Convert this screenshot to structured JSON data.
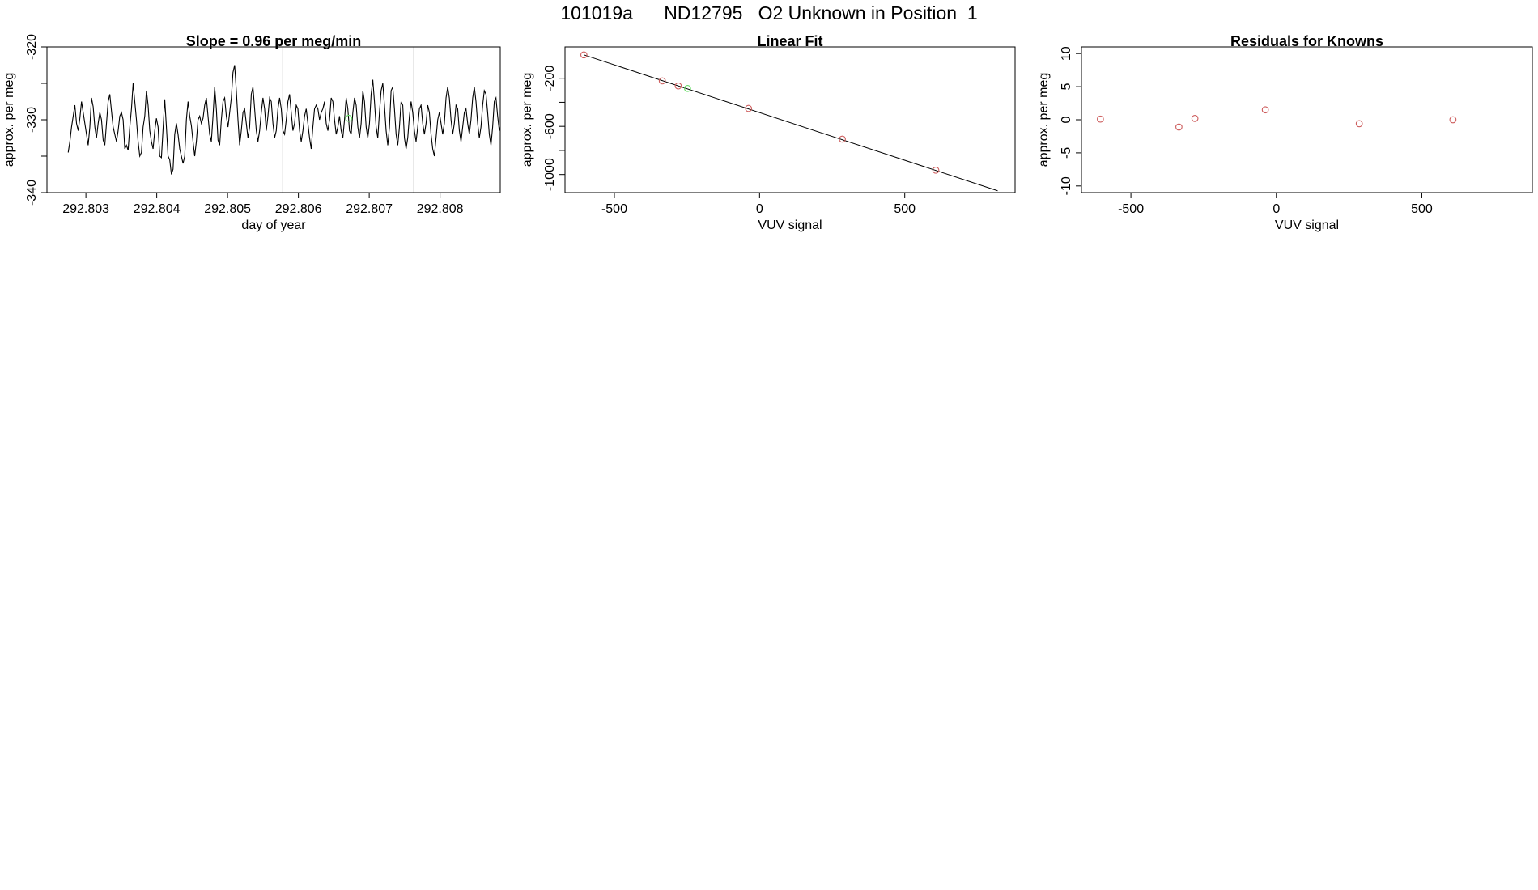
{
  "figure": {
    "title": "101019a      ND12795   O2 Unknown in Position  1"
  },
  "colors": {
    "line": "#000000",
    "known_point": "#cd5c5c",
    "unknown_point": "#66dd66",
    "vline": "#bebebe"
  },
  "chart_data": [
    {
      "type": "line",
      "title": "Slope =  0.96  per meg/min",
      "xlabel": "day of year",
      "ylabel": "approx. per meg",
      "xlim": [
        292.80245,
        292.80885
      ],
      "ylim": [
        -340,
        -320
      ],
      "xticks": [
        292.803,
        292.804,
        292.805,
        292.806,
        292.807,
        292.808
      ],
      "xtick_labels": [
        "292.803",
        "292.804",
        "292.805",
        "292.806",
        "292.807",
        "292.808"
      ],
      "yticks": [
        -340,
        -335,
        -330,
        -325,
        -320
      ],
      "ytick_labels": [
        "-340",
        "",
        "-330",
        "",
        "-320"
      ],
      "grid": false,
      "vlines": [
        292.80578,
        292.80763
      ],
      "x_start": 292.80275,
      "x_step": 2.35e-05,
      "series": [
        {
          "values": [
            -334.5,
            -333.0,
            -331.0,
            -329.5,
            -328.0,
            -330.5,
            -331.5,
            -329.8,
            -327.5,
            -329.0,
            -330.5,
            -332.0,
            -333.5,
            -331.0,
            -327.0,
            -328.2,
            -331.0,
            -332.5,
            -330.5,
            -329.0,
            -330.0,
            -332.8,
            -333.5,
            -330.5,
            -327.5,
            -326.5,
            -328.8,
            -331.0,
            -332.0,
            -333.0,
            -331.5,
            -329.5,
            -329.0,
            -330.0,
            -334.0,
            -333.5,
            -334.2,
            -331.0,
            -328.5,
            -325.0,
            -327.5,
            -330.0,
            -333.0,
            -335.0,
            -334.5,
            -331.0,
            -329.5,
            -326.0,
            -328.0,
            -331.5,
            -333.0,
            -334.0,
            -331.5,
            -329.8,
            -331.0,
            -335.0,
            -335.2,
            -331.2,
            -327.2,
            -331.0,
            -335.0,
            -335.5,
            -337.5,
            -336.8,
            -332.0,
            -330.5,
            -332.0,
            -334.0,
            -335.0,
            -336.0,
            -335.0,
            -330.0,
            -327.5,
            -329.5,
            -330.8,
            -333.0,
            -335.0,
            -333.0,
            -330.0,
            -329.5,
            -330.5,
            -329.8,
            -328.0,
            -327.0,
            -329.5,
            -332.0,
            -333.0,
            -329.5,
            -325.5,
            -328.5,
            -332.8,
            -333.5,
            -330.0,
            -327.5,
            -327.0,
            -329.5,
            -331.0,
            -329.0,
            -327.0,
            -323.5,
            -322.5,
            -326.0,
            -330.0,
            -333.5,
            -331.5,
            -329.0,
            -328.5,
            -330.5,
            -332.5,
            -331.0,
            -326.5,
            -325.5,
            -328.5,
            -331.5,
            -333.0,
            -331.5,
            -329.0,
            -327.0,
            -328.5,
            -331.5,
            -329.5,
            -327.0,
            -327.5,
            -330.5,
            -332.5,
            -331.5,
            -328.5,
            -327.0,
            -328.5,
            -331.5,
            -332.0,
            -330.0,
            -327.5,
            -326.5,
            -329.0,
            -331.5,
            -330.5,
            -328.0,
            -328.5,
            -331.5,
            -333.0,
            -331.5,
            -329.5,
            -328.5,
            -330.5,
            -332.5,
            -334.0,
            -331.0,
            -328.5,
            -328.0,
            -328.5,
            -330.0,
            -329.0,
            -328.5,
            -327.5,
            -330.5,
            -331.5,
            -330.0,
            -327.0,
            -327.5,
            -330.0,
            -332.0,
            -331.0,
            -329.5,
            -331.5,
            -332.5,
            -330.0,
            -327.0,
            -328.5,
            -331.5,
            -332.0,
            -329.0,
            -327.0,
            -328.0,
            -331.0,
            -332.5,
            -330.5,
            -326.0,
            -327.5,
            -331.0,
            -332.5,
            -330.5,
            -326.5,
            -324.5,
            -327.5,
            -331.0,
            -332.5,
            -329.0,
            -326.0,
            -325.0,
            -328.0,
            -331.5,
            -333.5,
            -331.0,
            -326.0,
            -325.5,
            -328.5,
            -332.0,
            -333.5,
            -331.0,
            -327.5,
            -328.0,
            -332.5,
            -334.0,
            -332.5,
            -329.5,
            -327.5,
            -329.0,
            -331.5,
            -333.0,
            -331.0,
            -328.5,
            -328.0,
            -330.5,
            -332.0,
            -330.5,
            -328.0,
            -329.0,
            -332.0,
            -334.0,
            -335.0,
            -332.5,
            -330.0,
            -329.0,
            -330.5,
            -332.0,
            -330.5,
            -327.0,
            -325.5,
            -327.0,
            -330.0,
            -332.0,
            -330.5,
            -328.0,
            -328.5,
            -331.5,
            -333.0,
            -331.0,
            -329.0,
            -328.5,
            -330.5,
            -332.0,
            -330.0,
            -327.0,
            -325.5,
            -327.5,
            -330.5,
            -332.5,
            -331.0,
            -328.0,
            -326.0,
            -326.5,
            -329.0,
            -332.0,
            -333.5,
            -331.0,
            -327.5,
            -327.0,
            -329.5,
            -331.5,
            -330.5,
            -328.0,
            -326.0,
            -324.5,
            -327.0,
            -330.5,
            -332.5,
            -331.0,
            -328.0,
            -326.5,
            -328.5,
            -331.5,
            -332.5,
            -330.5,
            -328.5,
            -329.5,
            -331.5,
            -330.0,
            -328.0,
            -328.5,
            -330.0,
            -331.0,
            -330.0,
            -328.0,
            -326.5,
            -329.0,
            -331.0,
            -329.5,
            -327.0,
            -325.5,
            -328.0,
            -331.0,
            -330.0,
            -328.0,
            -329.0,
            -330.0,
            -330.5,
            -329.0,
            -330.5,
            -331.0,
            -324.0,
            -322.0,
            -320.5,
            -320.0
          ]
        }
      ],
      "highlight_points": [
        {
          "x": 292.80671,
          "y": -329.8,
          "role": "unknown"
        }
      ]
    },
    {
      "type": "scatter",
      "title": "Linear Fit",
      "xlabel": "VUV signal",
      "ylabel": "approx. per meg",
      "xlim": [
        -670,
        880
      ],
      "ylim": [
        -1150,
        60
      ],
      "xticks": [
        -500,
        0,
        500
      ],
      "xtick_labels": [
        "-500",
        "0",
        "500"
      ],
      "yticks": [
        -1000,
        -800,
        -600,
        -400,
        -200
      ],
      "ytick_labels": [
        "-1000",
        "",
        "-600",
        "",
        "-200"
      ],
      "grid": false,
      "fit_line": {
        "x": [
          -605,
          820
        ],
        "y": [
          -6,
          -1135
        ]
      },
      "series": [
        {
          "role": "knowns",
          "x": [
            -605,
            -335,
            -280,
            -38,
            285,
            607
          ],
          "y": [
            -6,
            -222,
            -264,
            -451,
            -706,
            -964
          ]
        },
        {
          "role": "unknown",
          "x": [
            -248
          ],
          "y": [
            -285
          ]
        }
      ]
    },
    {
      "type": "scatter",
      "title": "Residuals for Knowns",
      "xlabel": "VUV signal",
      "ylabel": "approx. per meg",
      "xlim": [
        -670,
        880
      ],
      "ylim": [
        -11,
        11
      ],
      "xticks": [
        -500,
        0,
        500
      ],
      "xtick_labels": [
        "-500",
        "0",
        "500"
      ],
      "yticks": [
        -10,
        -5,
        0,
        5,
        10
      ],
      "ytick_labels": [
        "-10",
        "-5",
        "0",
        "5",
        "10"
      ],
      "grid": false,
      "series": [
        {
          "role": "knowns",
          "x": [
            -605,
            -335,
            -280,
            -38,
            285,
            607
          ],
          "y": [
            0.1,
            -1.1,
            0.2,
            1.5,
            -0.6,
            0.0
          ]
        }
      ]
    }
  ]
}
